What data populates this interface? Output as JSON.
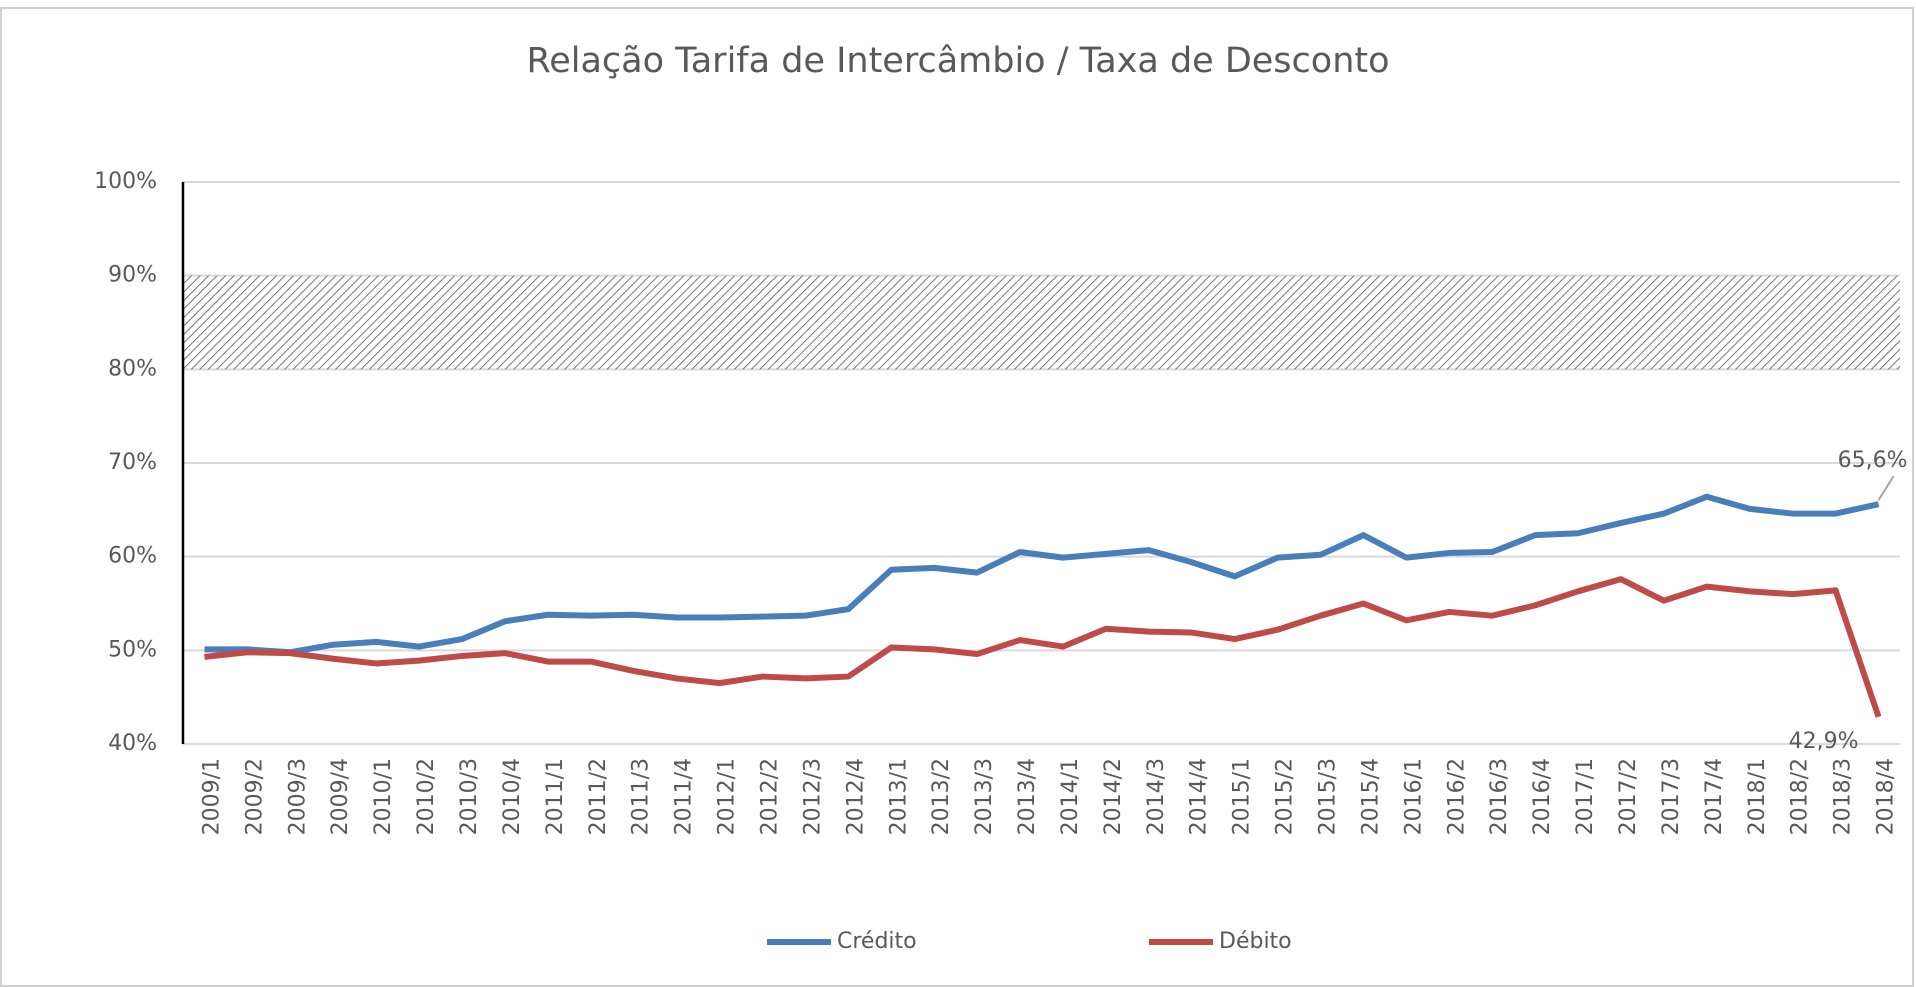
{
  "chart_data": {
    "type": "line",
    "title": "Relação Tarifa de Intercâmbio / Taxa de Desconto",
    "categories": [
      "2009/1",
      "2009/2",
      "2009/3",
      "2009/4",
      "2010/1",
      "2010/2",
      "2010/3",
      "2010/4",
      "2011/1",
      "2011/2",
      "2011/3",
      "2011/4",
      "2012/1",
      "2012/2",
      "2012/3",
      "2012/4",
      "2013/1",
      "2013/2",
      "2013/3",
      "2013/4",
      "2014/1",
      "2014/2",
      "2014/3",
      "2014/4",
      "2015/1",
      "2015/2",
      "2015/3",
      "2015/4",
      "2016/1",
      "2016/2",
      "2016/3",
      "2016/4",
      "2017/1",
      "2017/2",
      "2017/3",
      "2017/4",
      "2018/1",
      "2018/2",
      "2018/3",
      "2018/4"
    ],
    "series": [
      {
        "name": "Crédito",
        "color": "#4a7ebb",
        "values": [
          50.1,
          50.1,
          49.8,
          50.6,
          50.9,
          50.4,
          51.2,
          53.1,
          53.8,
          53.7,
          53.8,
          53.5,
          53.5,
          53.6,
          53.7,
          54.4,
          58.6,
          58.8,
          58.3,
          60.5,
          59.9,
          60.3,
          60.7,
          59.4,
          57.9,
          59.9,
          60.2,
          62.3,
          59.9,
          60.4,
          60.5,
          62.3,
          62.5,
          63.6,
          64.6,
          66.4,
          65.1,
          64.6,
          64.6,
          65.6
        ],
        "value_labels": [
          null,
          null,
          null,
          null,
          null,
          null,
          null,
          null,
          null,
          null,
          null,
          null,
          null,
          null,
          null,
          null,
          null,
          null,
          null,
          null,
          null,
          null,
          null,
          null,
          null,
          null,
          null,
          null,
          null,
          null,
          null,
          null,
          null,
          null,
          null,
          null,
          null,
          null,
          null,
          "65,6%"
        ]
      },
      {
        "name": "Débito",
        "color": "#be4b48",
        "values": [
          49.3,
          49.8,
          49.7,
          49.1,
          48.6,
          48.9,
          49.4,
          49.7,
          48.8,
          48.8,
          47.8,
          47.0,
          46.5,
          47.2,
          47.0,
          47.2,
          50.3,
          50.1,
          49.6,
          51.1,
          50.4,
          52.3,
          52.0,
          51.9,
          51.2,
          52.2,
          53.7,
          55.0,
          53.2,
          54.1,
          53.7,
          54.8,
          56.3,
          57.6,
          55.3,
          56.8,
          56.3,
          56.0,
          56.4,
          42.9
        ],
        "value_labels": [
          null,
          null,
          null,
          null,
          null,
          null,
          null,
          null,
          null,
          null,
          null,
          null,
          null,
          null,
          null,
          null,
          null,
          null,
          null,
          null,
          null,
          null,
          null,
          null,
          null,
          null,
          null,
          null,
          null,
          null,
          null,
          null,
          null,
          null,
          null,
          null,
          null,
          null,
          null,
          "42,9%"
        ]
      }
    ],
    "shaded_band": [
      80,
      90
    ],
    "ylim": [
      40,
      100
    ],
    "yticks": [
      {
        "value": 40,
        "label": "40%"
      },
      {
        "value": 50,
        "label": "50%"
      },
      {
        "value": 60,
        "label": "60%"
      },
      {
        "value": 70,
        "label": "70%"
      },
      {
        "value": 80,
        "label": "80%"
      },
      {
        "value": 90,
        "label": "90%"
      },
      {
        "value": 100,
        "label": "100%"
      }
    ],
    "grid": true,
    "legend": "bottom"
  }
}
